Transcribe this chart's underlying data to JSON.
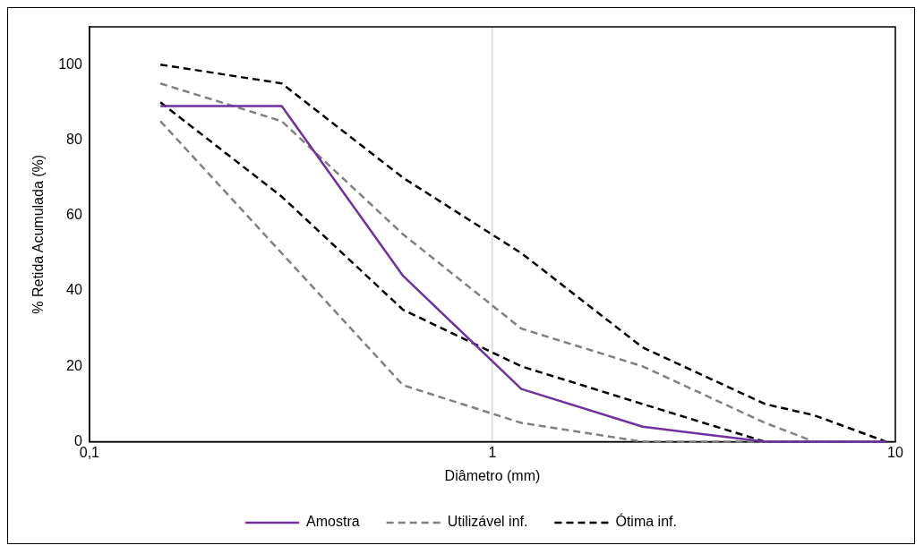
{
  "chart_data": {
    "type": "line",
    "xlabel": "Diâmetro (mm)",
    "ylabel": "% Retida Acumulada (%)",
    "x": [
      0.15,
      0.3,
      0.6,
      1.18,
      2.36,
      4.75,
      6.3,
      9.5
    ],
    "series": [
      {
        "name": "Amostra",
        "color": "#7030a0",
        "values": [
          89,
          89,
          44,
          14,
          4,
          0,
          0,
          0
        ],
        "line_style": "solid"
      },
      {
        "name": "Utilizável inf.",
        "color": "#808080",
        "values": [
          85,
          50,
          15,
          5,
          0,
          0,
          0,
          0
        ],
        "line_style": "dashed"
      },
      {
        "name": "Ótima inf.",
        "color": "#000000",
        "values": [
          90,
          65,
          35,
          20,
          10,
          0,
          0,
          0
        ],
        "line_style": "dashed"
      },
      {
        "color": "#808080",
        "values": [
          95,
          85,
          55,
          30,
          20,
          5,
          0,
          0
        ],
        "line_style": "dashed"
      },
      {
        "color": "#000000",
        "values": [
          100,
          95,
          70,
          50,
          25,
          10,
          7,
          0
        ],
        "line_style": "dashed"
      }
    ],
    "log": "x",
    "xlim": [
      0.1,
      10
    ],
    "xticks": [
      {
        "value": 0.1,
        "label": "0,1"
      },
      1,
      10
    ],
    "ylim": [
      0,
      110
    ],
    "yticks": [
      0,
      20,
      40,
      60,
      80,
      100
    ],
    "grid": "x",
    "legend": "bottom",
    "marker": "none"
  }
}
